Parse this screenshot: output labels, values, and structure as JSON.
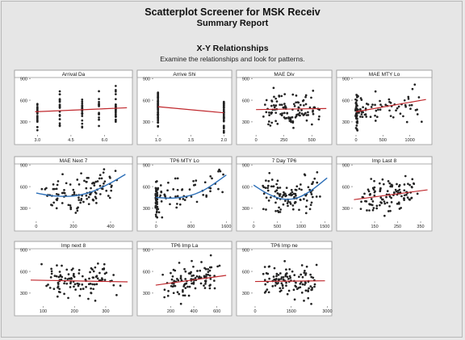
{
  "header": {
    "title": "Scatterplot Screener for MSK Receiv",
    "subtitle": "Summary Report",
    "section_title": "X-Y Relationships",
    "section_subtitle": "Examine the relationships and look for patterns."
  },
  "colors": {
    "points": "#222222",
    "linear_fit": "#c0282d",
    "quadratic_fit": "#2c6fb8",
    "panel_bg": "#ffffff",
    "page_bg": "#e6e6e6"
  },
  "chart_data": [
    {
      "type": "scatter",
      "title": "Arrival Da",
      "xlim": [
        2.7,
        7.1
      ],
      "ylim": [
        120,
        880
      ],
      "xticks": [
        3.0,
        4.5,
        6.0
      ],
      "xtick_labels": [
        "3.0",
        "4.5",
        "6.0"
      ],
      "yticks": [
        300,
        600,
        900
      ],
      "ytick_labels": [
        "300",
        "600",
        "900"
      ],
      "fit": "linear",
      "fit_color": "#c0282d",
      "fit_points": [
        [
          2.9,
          440
        ],
        [
          7.0,
          495
        ]
      ]
    },
    {
      "type": "scatter",
      "title": "Arrive Shi",
      "xlim": [
        0.93,
        2.07
      ],
      "ylim": [
        120,
        880
      ],
      "xticks": [
        1.0,
        1.5,
        2.0
      ],
      "xtick_labels": [
        "1.0",
        "1.5",
        "2.0"
      ],
      "yticks": [
        300,
        600,
        900
      ],
      "ytick_labels": [
        "300",
        "600",
        "900"
      ],
      "fit": "linear",
      "fit_color": "#c0282d",
      "fit_points": [
        [
          1.0,
          510
        ],
        [
          2.0,
          425
        ]
      ]
    },
    {
      "type": "scatter",
      "title": "MAE Div",
      "xlim": [
        -30,
        650
      ],
      "ylim": [
        120,
        880
      ],
      "xticks": [
        0,
        250,
        500
      ],
      "xtick_labels": [
        "0",
        "250",
        "500"
      ],
      "yticks": [
        300,
        600,
        900
      ],
      "ytick_labels": [
        "300",
        "600",
        "900"
      ],
      "fit": "linear",
      "fit_color": "#c0282d",
      "fit_points": [
        [
          0,
          470
        ],
        [
          630,
          485
        ]
      ]
    },
    {
      "type": "scatter",
      "title": "MAE MTY Lo",
      "xlim": [
        -60,
        1350
      ],
      "ylim": [
        120,
        880
      ],
      "xticks": [
        0,
        500,
        1000
      ],
      "xtick_labels": [
        "0",
        "500",
        "1000"
      ],
      "yticks": [
        300,
        600,
        900
      ],
      "ytick_labels": [
        "300",
        "600",
        "900"
      ],
      "fit": "linear",
      "fit_color": "#c0282d",
      "fit_points": [
        [
          0,
          440
        ],
        [
          1300,
          610
        ]
      ]
    },
    {
      "type": "scatter",
      "title": "MAE Next 7",
      "xlim": [
        -30,
        500
      ],
      "ylim": [
        120,
        880
      ],
      "xticks": [
        0,
        200,
        400
      ],
      "xtick_labels": [
        "0",
        "200",
        "400"
      ],
      "yticks": [
        300,
        600,
        900
      ],
      "ytick_labels": [
        "300",
        "600",
        "900"
      ],
      "fit": "quadratic",
      "fit_color": "#2c6fb8",
      "fit_points": [
        [
          0,
          510
        ],
        [
          100,
          470
        ],
        [
          200,
          470
        ],
        [
          300,
          530
        ],
        [
          400,
          650
        ],
        [
          480,
          770
        ]
      ]
    },
    {
      "type": "scatter",
      "title": "TP6 MTY Lo",
      "xlim": [
        -60,
        1650
      ],
      "ylim": [
        120,
        880
      ],
      "xticks": [
        0,
        800,
        1600
      ],
      "xtick_labels": [
        "0",
        "800",
        "1600"
      ],
      "yticks": [
        300,
        600,
        900
      ],
      "ytick_labels": [
        "300",
        "600",
        "900"
      ],
      "fit": "quadratic",
      "fit_color": "#2c6fb8",
      "fit_points": [
        [
          0,
          450
        ],
        [
          300,
          440
        ],
        [
          600,
          455
        ],
        [
          900,
          500
        ],
        [
          1200,
          590
        ],
        [
          1600,
          760
        ]
      ]
    },
    {
      "type": "scatter",
      "title": "7 Day TP6",
      "xlim": [
        -20,
        1580
      ],
      "ylim": [
        120,
        880
      ],
      "xticks": [
        0,
        500,
        1000,
        1500
      ],
      "xtick_labels": [
        "0",
        "500",
        "1000",
        "1500"
      ],
      "yticks": [
        300,
        600,
        900
      ],
      "ytick_labels": [
        "300",
        "600",
        "900"
      ],
      "fit": "quadratic",
      "fit_color": "#2c6fb8",
      "fit_points": [
        [
          0,
          620
        ],
        [
          300,
          500
        ],
        [
          600,
          430
        ],
        [
          900,
          440
        ],
        [
          1200,
          540
        ],
        [
          1550,
          720
        ]
      ]
    },
    {
      "type": "scatter",
      "title": "Imp Last 8",
      "xlim": [
        55,
        385
      ],
      "ylim": [
        120,
        880
      ],
      "xticks": [
        150,
        250,
        350
      ],
      "xtick_labels": [
        "150",
        "250",
        "350"
      ],
      "yticks": [
        300,
        600,
        900
      ],
      "ytick_labels": [
        "300",
        "600",
        "900"
      ],
      "fit": "linear",
      "fit_color": "#c0282d",
      "fit_points": [
        [
          60,
          420
        ],
        [
          380,
          555
        ]
      ]
    },
    {
      "type": "scatter",
      "title": "Imp next 8",
      "xlim": [
        60,
        375
      ],
      "ylim": [
        120,
        880
      ],
      "xticks": [
        100,
        200,
        300
      ],
      "xtick_labels": [
        "100",
        "200",
        "300"
      ],
      "yticks": [
        300,
        600,
        900
      ],
      "ytick_labels": [
        "300",
        "600",
        "900"
      ],
      "fit": "linear",
      "fit_color": "#c0282d",
      "fit_points": [
        [
          60,
          480
        ],
        [
          370,
          455
        ]
      ]
    },
    {
      "type": "scatter",
      "title": "TP6 Imp La",
      "xlim": [
        50,
        700
      ],
      "ylim": [
        120,
        880
      ],
      "xticks": [
        200,
        400,
        600
      ],
      "xtick_labels": [
        "200",
        "400",
        "600"
      ],
      "yticks": [
        300,
        600,
        900
      ],
      "ytick_labels": [
        "300",
        "600",
        "900"
      ],
      "fit": "linear",
      "fit_color": "#c0282d",
      "fit_points": [
        [
          70,
          410
        ],
        [
          680,
          545
        ]
      ]
    },
    {
      "type": "scatter",
      "title": "TP6 Imp ne",
      "xlim": [
        -100,
        3050
      ],
      "ylim": [
        120,
        880
      ],
      "xticks": [
        0,
        1500,
        3000
      ],
      "xtick_labels": [
        "0",
        "1500",
        "3000"
      ],
      "yticks": [
        300,
        600,
        900
      ],
      "ytick_labels": [
        "300",
        "600",
        "900"
      ],
      "fit": "linear",
      "fit_color": "#c0282d",
      "fit_points": [
        [
          0,
          460
        ],
        [
          2900,
          470
        ]
      ]
    }
  ]
}
